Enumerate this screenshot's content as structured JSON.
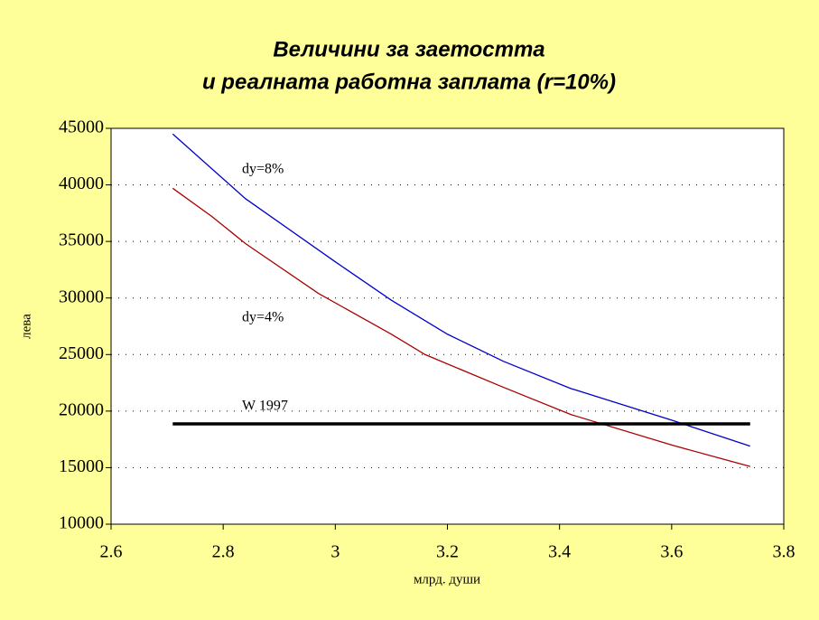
{
  "chart_data": {
    "type": "line",
    "title": [
      "Величини за заетостта",
      "и реалната работна заплата (r=10%)"
    ],
    "x_label": "млрд. души",
    "y_label": "лева",
    "xlim": [
      2.6,
      3.8
    ],
    "xticks": [
      2.6,
      2.8,
      3,
      3.2,
      3.4,
      3.6,
      3.8
    ],
    "ylim": [
      10000,
      45000
    ],
    "yticks": [
      10000,
      15000,
      20000,
      25000,
      30000,
      35000,
      40000,
      45000
    ],
    "grid": true,
    "series": [
      {
        "name": "dy=8%",
        "color": "#0000cc",
        "x": [
          2.71,
          2.84,
          3.0,
          3.1,
          3.2,
          3.3,
          3.42,
          3.6,
          3.74
        ],
        "values": [
          44500,
          38770,
          33200,
          29800,
          26800,
          24400,
          22000,
          19200,
          16900
        ]
      },
      {
        "name": "dy=4%",
        "color": "#aa0000",
        "x": [
          2.71,
          2.78,
          2.84,
          2.97,
          3.1,
          3.16,
          3.3,
          3.42,
          3.6,
          3.74
        ],
        "values": [
          39700,
          37200,
          34800,
          30400,
          26800,
          25000,
          22100,
          19700,
          17000,
          15100
        ]
      },
      {
        "name": "W 1997",
        "color": "#000000",
        "x": [
          2.71,
          3.74
        ],
        "values": [
          18870,
          18870
        ]
      }
    ]
  }
}
